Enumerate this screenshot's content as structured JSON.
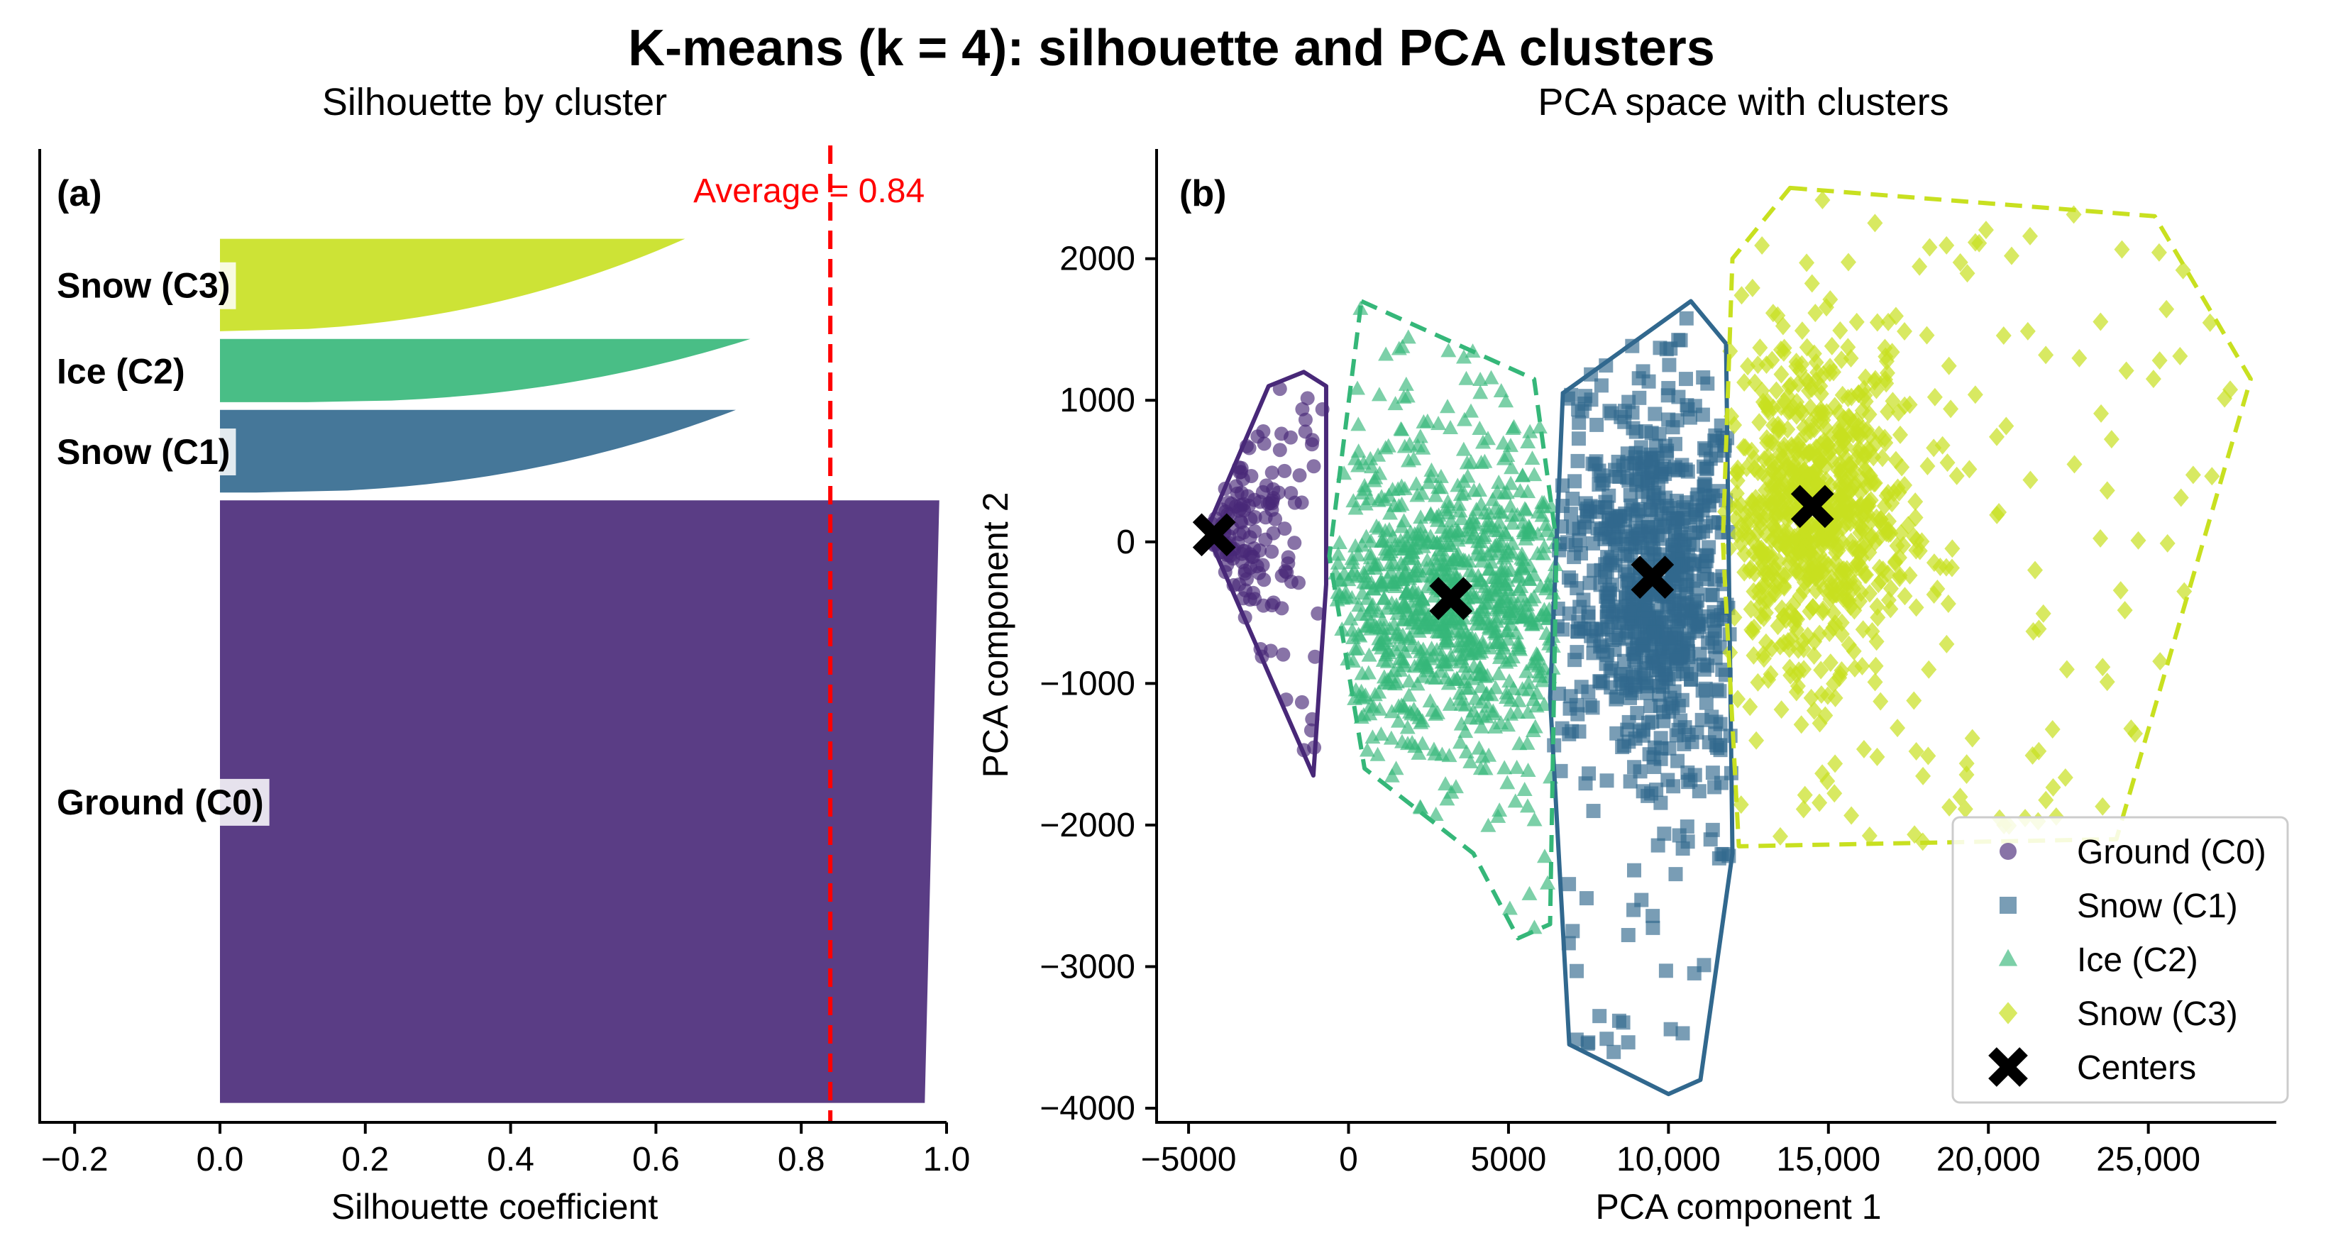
{
  "figure": {
    "title": "K-means (k = 4): silhouette and PCA clusters"
  },
  "colors": {
    "C0": "#482878",
    "C1": "#31688e",
    "C2": "#35b779",
    "C3": "#c8e020",
    "average_line": "#ff0000",
    "centers": "#000000"
  },
  "chart_data": [
    {
      "panel": "(a)",
      "type": "area",
      "title": "Silhouette by cluster",
      "xlabel": "Silhouette coefficient",
      "ylabel": "",
      "xlim": [
        -0.25,
        1.0
      ],
      "xticks": [
        -0.2,
        0.0,
        0.2,
        0.4,
        0.6,
        0.8,
        1.0
      ],
      "xtick_labels": [
        "−0.2",
        "0.0",
        "0.2",
        "0.4",
        "0.6",
        "0.8",
        "1.0"
      ],
      "average_silhouette": 0.84,
      "average_label": "Average = 0.84",
      "clusters_stacked_bottom_to_top": [
        {
          "name": "Ground (C0)",
          "color_key": "C0",
          "size_fraction": 0.62,
          "max": 0.99,
          "min": 0.97
        },
        {
          "name": "Snow (C1)",
          "color_key": "C1",
          "size_fraction": 0.085,
          "max": 0.71,
          "min": 0.05
        },
        {
          "name": "Ice (C2)",
          "color_key": "C2",
          "size_fraction": 0.065,
          "max": 0.73,
          "min": 0.12
        },
        {
          "name": "Snow (C3)",
          "color_key": "C3",
          "size_fraction": 0.095,
          "max": 0.64,
          "min": 0.0
        }
      ]
    },
    {
      "panel": "(b)",
      "type": "scatter",
      "title": "PCA space with clusters",
      "xlabel": "PCA component 1",
      "ylabel": "PCA component 2",
      "xlim": [
        -6000,
        29000
      ],
      "ylim": [
        -4100,
        2800
      ],
      "xticks": [
        -5000,
        0,
        5000,
        10000,
        15000,
        20000,
        25000
      ],
      "xtick_labels": [
        "−5000",
        "0",
        "5000",
        "10,000",
        "15,000",
        "20,000",
        "25,000"
      ],
      "yticks": [
        -4000,
        -3000,
        -2000,
        -1000,
        0,
        1000,
        2000
      ],
      "ytick_labels": [
        "−4000",
        "−3000",
        "−2000",
        "−1000",
        "0",
        "1000",
        "2000"
      ],
      "legend_position": "bottom-right",
      "legend": [
        "Ground (C0)",
        "Snow (C1)",
        "Ice (C2)",
        "Snow (C3)",
        "Centers"
      ],
      "series": [
        {
          "name": "Ground (C0)",
          "color_key": "C0",
          "marker": "circle",
          "hull_style": "solid",
          "n_points": 150,
          "hull": [
            [
              -4400,
              100
            ],
            [
              -2500,
              1100
            ],
            [
              -1400,
              1200
            ],
            [
              -700,
              1100
            ],
            [
              -700,
              -300
            ],
            [
              -1100,
              -1650
            ],
            [
              -4300,
              0
            ]
          ],
          "center": [
            -4200,
            50
          ]
        },
        {
          "name": "Snow (C1)",
          "color_key": "C1",
          "marker": "square",
          "hull_style": "solid",
          "n_points": 800,
          "hull": [
            [
              6700,
              1050
            ],
            [
              10700,
              1700
            ],
            [
              11800,
              1400
            ],
            [
              12000,
              -2200
            ],
            [
              11000,
              -3800
            ],
            [
              10000,
              -3900
            ],
            [
              6900,
              -3550
            ],
            [
              6300,
              -1100
            ],
            [
              6700,
              1050
            ]
          ],
          "center": [
            9500,
            -250
          ]
        },
        {
          "name": "Ice (C2)",
          "color_key": "C2",
          "marker": "triangle",
          "hull_style": "dashed",
          "n_points": 900,
          "hull": [
            [
              400,
              1700
            ],
            [
              5800,
              1150
            ],
            [
              6500,
              0
            ],
            [
              6300,
              -2700
            ],
            [
              5300,
              -2800
            ],
            [
              3900,
              -2200
            ],
            [
              500,
              -1600
            ],
            [
              -600,
              -100
            ],
            [
              400,
              1700
            ]
          ],
          "center": [
            3200,
            -400
          ]
        },
        {
          "name": "Snow (C3)",
          "color_key": "C3",
          "marker": "diamond",
          "hull_style": "dashed",
          "n_points": 900,
          "hull": [
            [
              13800,
              2500
            ],
            [
              25200,
              2300
            ],
            [
              28200,
              1150
            ],
            [
              24000,
              -2100
            ],
            [
              12200,
              -2150
            ],
            [
              11700,
              0
            ],
            [
              12000,
              2000
            ],
            [
              13800,
              2500
            ]
          ],
          "center": [
            14500,
            250
          ]
        }
      ]
    }
  ]
}
